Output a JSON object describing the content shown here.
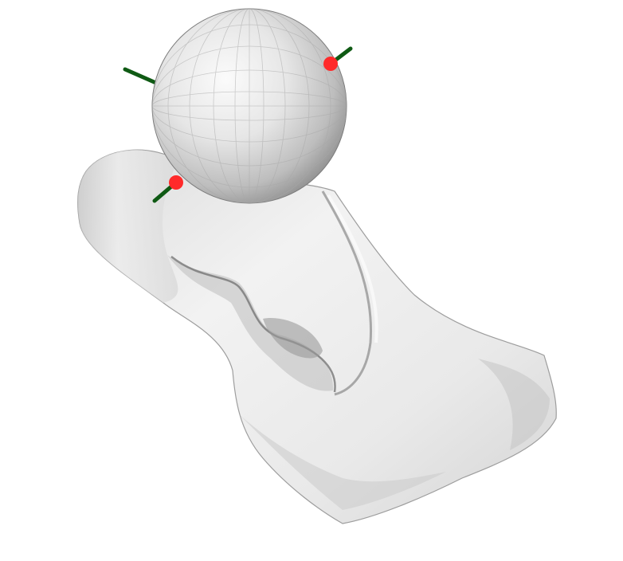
{
  "scene": {
    "background": "#ffffff",
    "object": {
      "kind": "scanned-mesh",
      "shading": "flat-gray",
      "color_light": "#f4f4f4",
      "color_mid": "#cfcfcf",
      "color_dark": "#8c8c8c"
    },
    "sphere": {
      "kind": "tessellated-sphere",
      "color_light": "#f6f6f6",
      "color_dark": "#9a9a9a"
    },
    "markers": {
      "count": 2,
      "point_color": "#ff2a2a",
      "axis_color": "#0f5a14"
    }
  }
}
